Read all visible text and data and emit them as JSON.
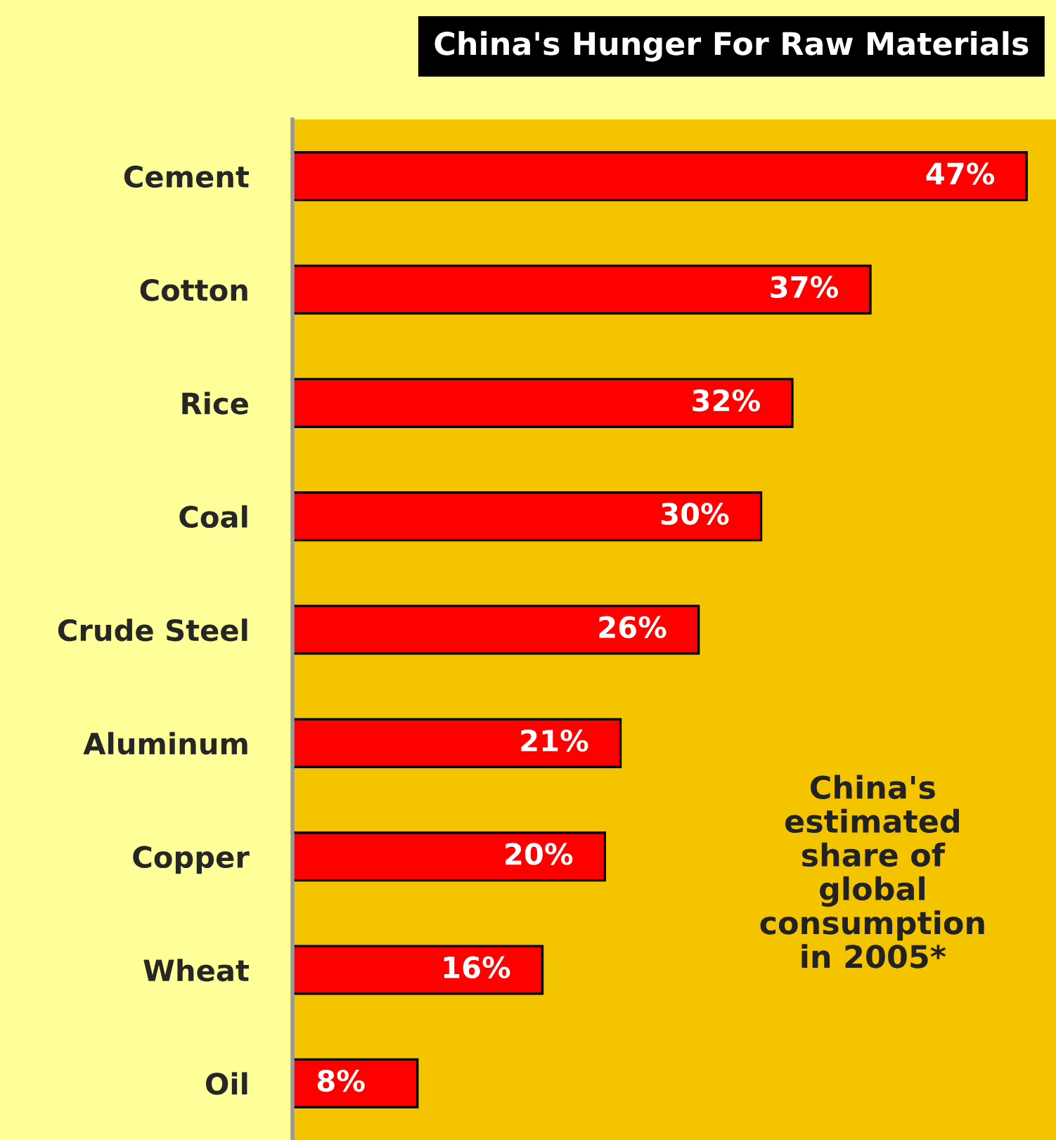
{
  "chart_data": {
    "type": "bar",
    "orientation": "horizontal",
    "title": "China's Hunger For Raw Materials",
    "categories": [
      "Cement",
      "Cotton",
      "Rice",
      "Coal",
      "Crude Steel",
      "Aluminum",
      "Copper",
      "Wheat",
      "Oil"
    ],
    "values": [
      47,
      37,
      32,
      30,
      26,
      21,
      20,
      16,
      8
    ],
    "value_labels": [
      "47%",
      "37%",
      "32%",
      "30%",
      "26%",
      "21%",
      "20%",
      "16%",
      "8%"
    ],
    "color": "#ff0000",
    "annotations": [
      "China's\nestimated\nshare of\nglobal\nconsumption\nin 2005*"
    ],
    "grid": false,
    "legend": false
  }
}
